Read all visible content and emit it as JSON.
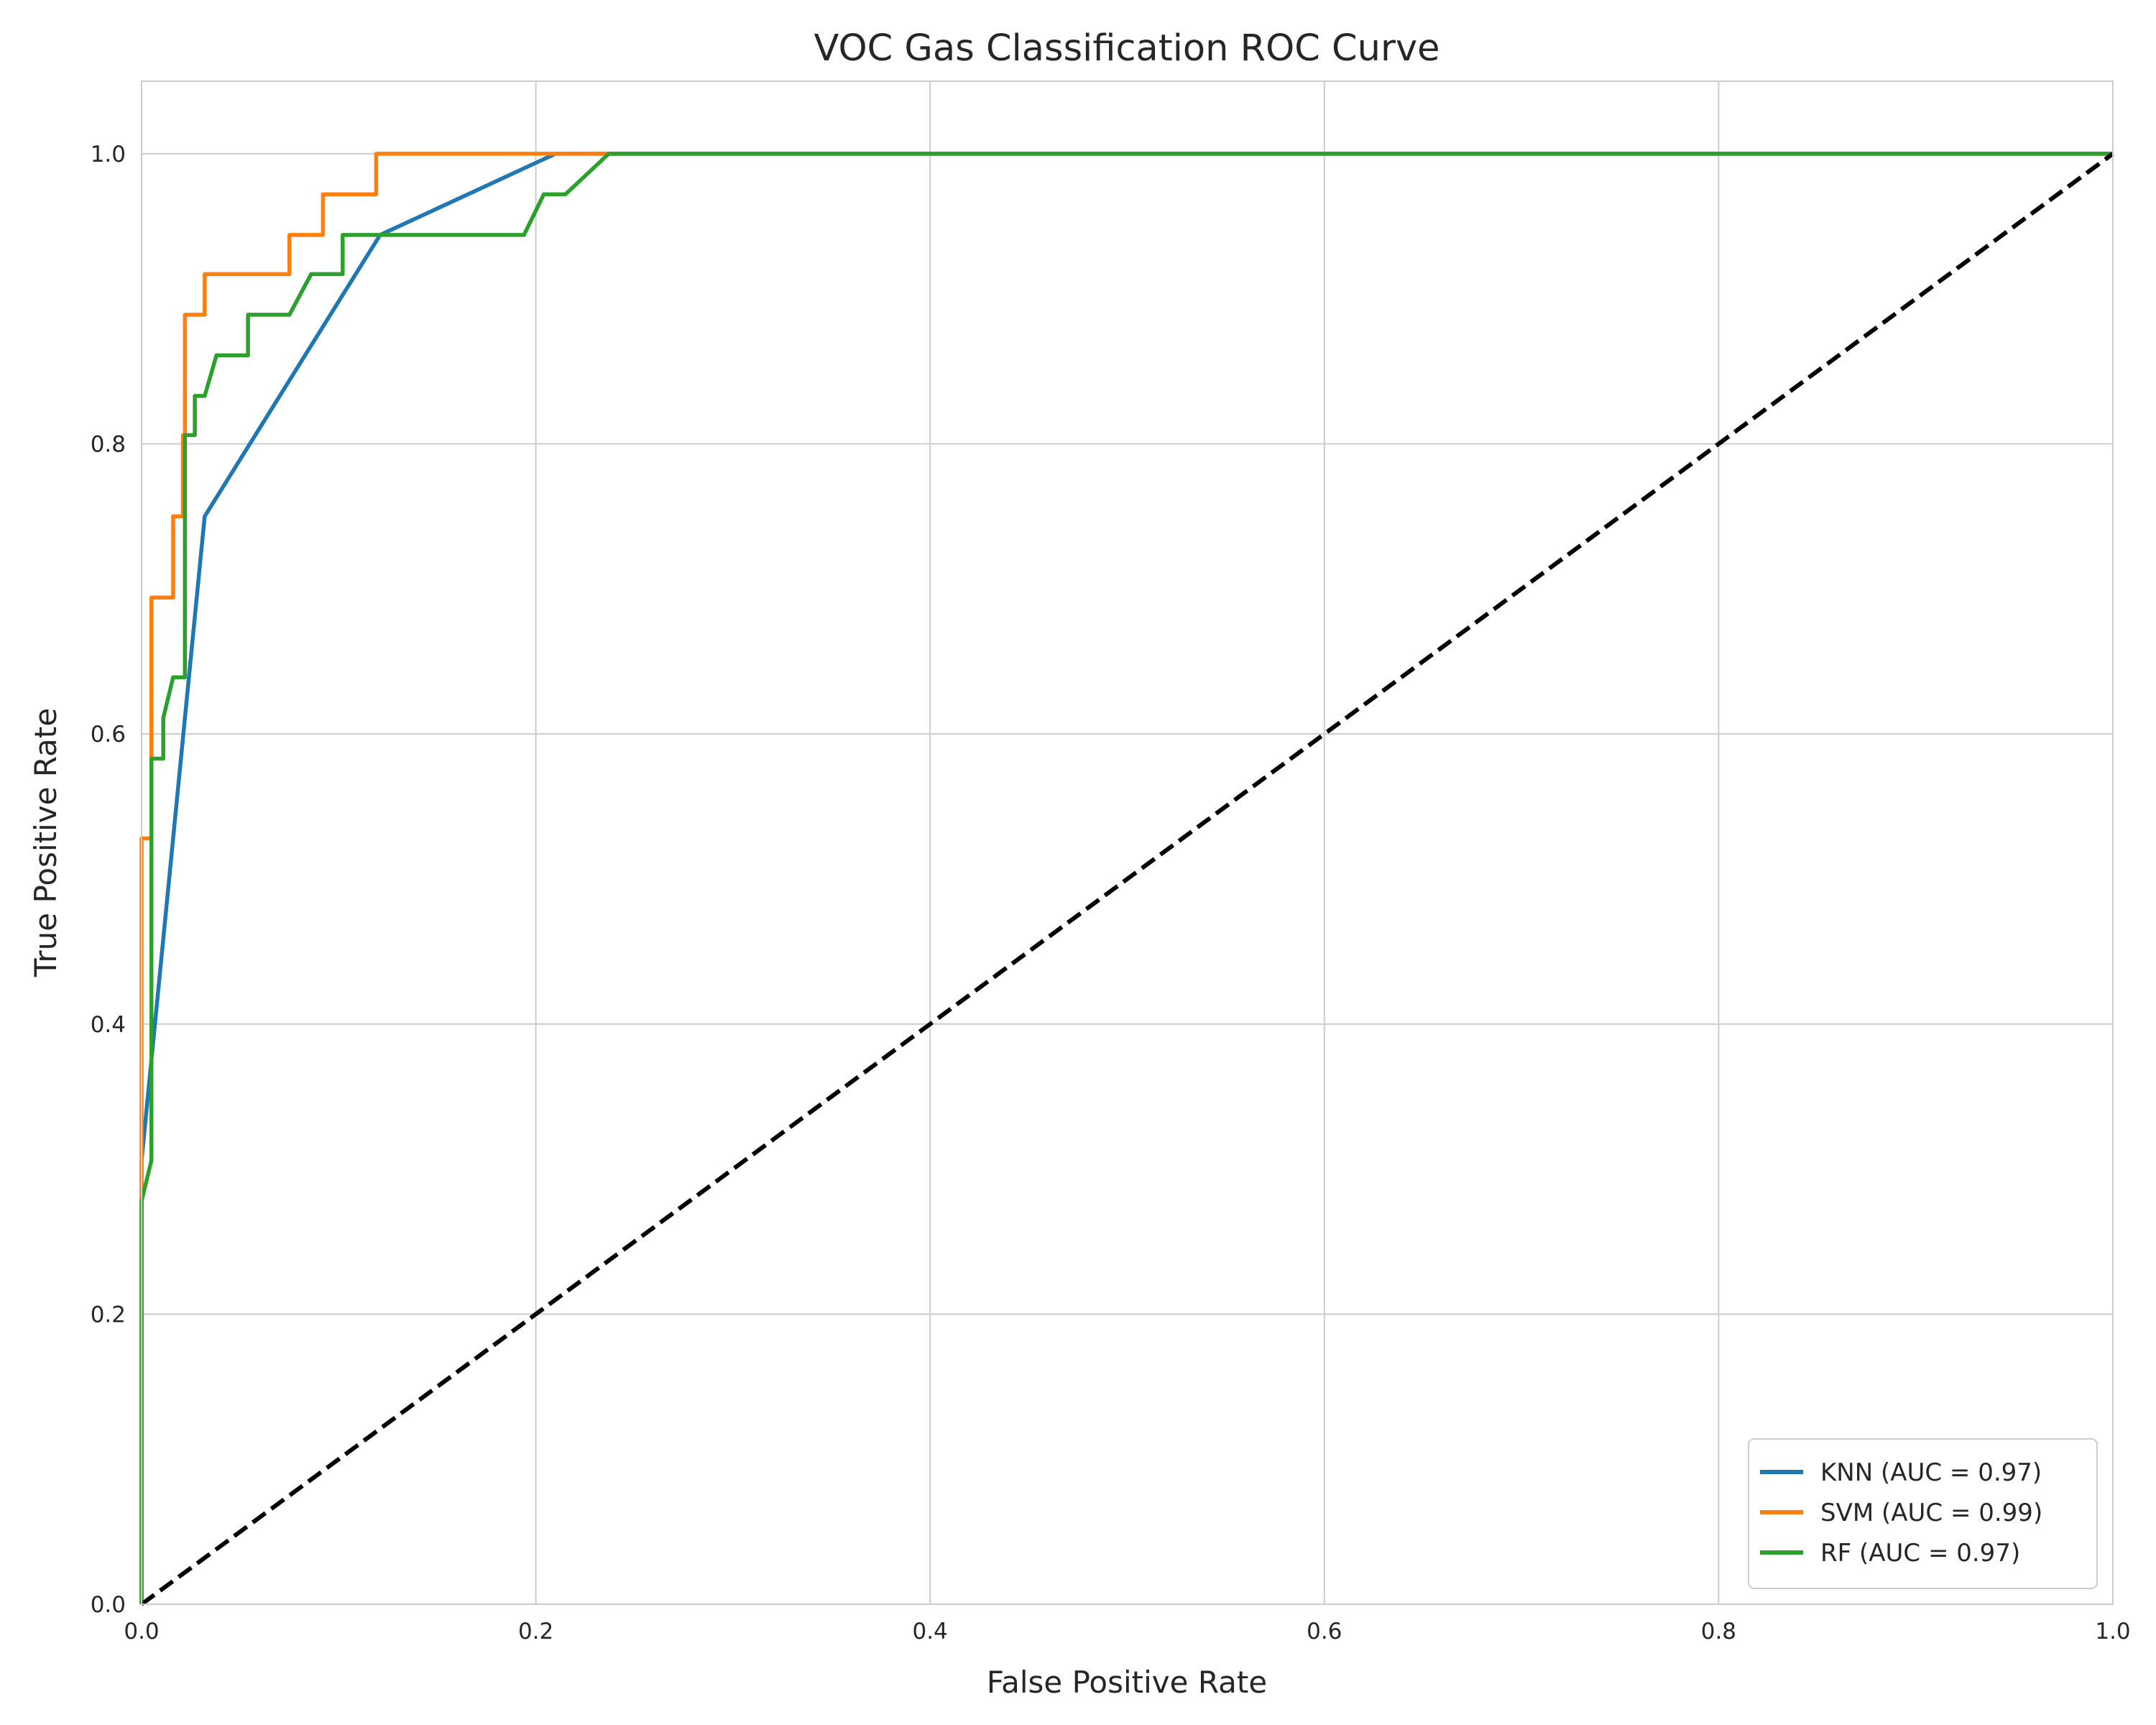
{
  "chart_data": {
    "type": "line",
    "title": "VOC Gas Classification ROC Curve",
    "xlabel": "False Positive Rate",
    "ylabel": "True Positive Rate",
    "xlim": [
      0.0,
      1.0
    ],
    "ylim": [
      0.0,
      1.05
    ],
    "xticks": [
      "0.0",
      "0.2",
      "0.4",
      "0.6",
      "0.8",
      "1.0"
    ],
    "yticks": [
      "0.0",
      "0.2",
      "0.4",
      "0.6",
      "0.8",
      "1.0"
    ],
    "grid": true,
    "legend_position": "lower right",
    "series": [
      {
        "name": "KNN (AUC = 0.97)",
        "color": "#1f77b4",
        "x": [
          0.0,
          0.0,
          0.032,
          0.121,
          0.21,
          1.0
        ],
        "y": [
          0.0,
          0.306,
          0.75,
          0.944,
          1.0,
          1.0
        ]
      },
      {
        "name": "SVM (AUC = 0.99)",
        "color": "#ff7f0e",
        "x": [
          0.0,
          0.0,
          0.005,
          0.005,
          0.011,
          0.011,
          0.016,
          0.016,
          0.021,
          0.021,
          0.022,
          0.022,
          0.032,
          0.032,
          0.054,
          0.054,
          0.075,
          0.075,
          0.081,
          0.081,
          0.086,
          0.086,
          0.092,
          0.092,
          0.097,
          0.097,
          0.113,
          0.113,
          0.119,
          0.119,
          0.135,
          0.135,
          0.151,
          0.151,
          0.237,
          1.0
        ],
        "y": [
          0.0,
          0.528,
          0.528,
          0.694,
          0.694,
          0.694,
          0.694,
          0.75,
          0.75,
          0.806,
          0.806,
          0.889,
          0.889,
          0.917,
          0.917,
          0.917,
          0.917,
          0.944,
          0.944,
          0.944,
          0.944,
          0.944,
          0.944,
          0.972,
          0.972,
          0.972,
          0.972,
          0.972,
          0.972,
          1.0,
          1.0,
          1.0,
          1.0,
          1.0,
          1.0,
          1.0
        ]
      },
      {
        "name": "RF (AUC = 0.97)",
        "color": "#2ca02c",
        "x": [
          0.0,
          0.0,
          0.005,
          0.005,
          0.011,
          0.011,
          0.016,
          0.016,
          0.022,
          0.022,
          0.027,
          0.027,
          0.032,
          0.038,
          0.054,
          0.054,
          0.075,
          0.086,
          0.102,
          0.102,
          0.118,
          0.194,
          0.204,
          0.215,
          0.237,
          1.0
        ],
        "y": [
          0.0,
          0.278,
          0.306,
          0.583,
          0.583,
          0.611,
          0.639,
          0.639,
          0.639,
          0.806,
          0.806,
          0.833,
          0.833,
          0.861,
          0.861,
          0.889,
          0.889,
          0.917,
          0.917,
          0.944,
          0.944,
          0.944,
          0.972,
          0.972,
          1.0,
          1.0
        ]
      },
      {
        "color": "#000000",
        "style": "dashed",
        "x": [
          0.0,
          1.0
        ],
        "y": [
          0.0,
          1.0
        ]
      }
    ]
  }
}
